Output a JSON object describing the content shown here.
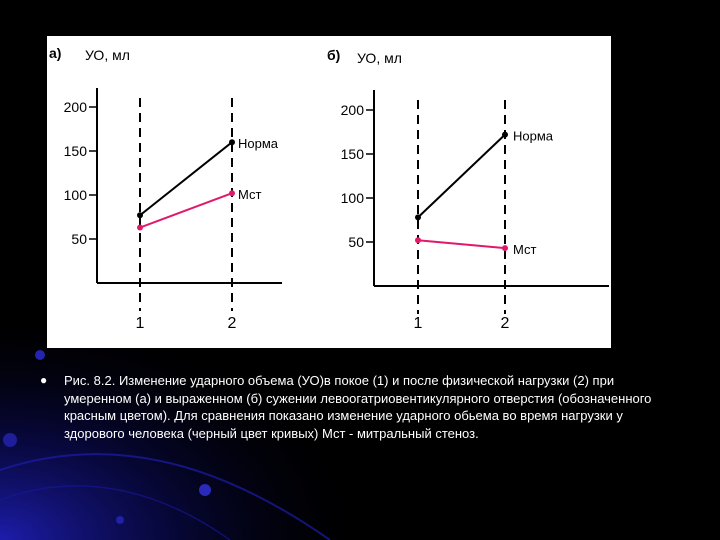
{
  "slide": {
    "background": "#000000",
    "accent": "#1a1aa0",
    "caption": "Рис. 8.2. Изменение ударного объема (УО)в покое (1) и после физической нагрузки (2) при умеренном (а) и выраженном (б) сужении левоогатриовентикулярного отверстия (обозначенного красным цветом). Для сравнения показано изменение ударного обьема во время нагрузки у здорового человека (черный цвет кривых) Мст - митральный стеноз.",
    "bullet_icon": "bullet-dot-icon"
  },
  "chart_data": [
    {
      "type": "line",
      "panel_label": "а)",
      "ylabel": "УО, мл",
      "x": [
        "1",
        "2"
      ],
      "yticks": [
        "200",
        "150",
        "100",
        "50"
      ],
      "ylim": [
        0,
        210
      ],
      "grid": false,
      "legend": "inline labels at line ends",
      "series": [
        {
          "name": "Норма",
          "color": "#000000",
          "values": [
            77,
            160
          ]
        },
        {
          "name": "Мст",
          "color": "#e0196b",
          "values": [
            63,
            102
          ]
        }
      ]
    },
    {
      "type": "line",
      "panel_label": "б)",
      "ylabel": "УО, мл",
      "x": [
        "1",
        "2"
      ],
      "yticks": [
        "200",
        "150",
        "100",
        "50"
      ],
      "ylim": [
        0,
        210
      ],
      "grid": false,
      "legend": "inline labels at line ends",
      "series": [
        {
          "name": "Норма",
          "color": "#000000",
          "values": [
            78,
            172
          ]
        },
        {
          "name": "Мст",
          "color": "#e0196b",
          "values": [
            52,
            43
          ]
        }
      ]
    }
  ]
}
